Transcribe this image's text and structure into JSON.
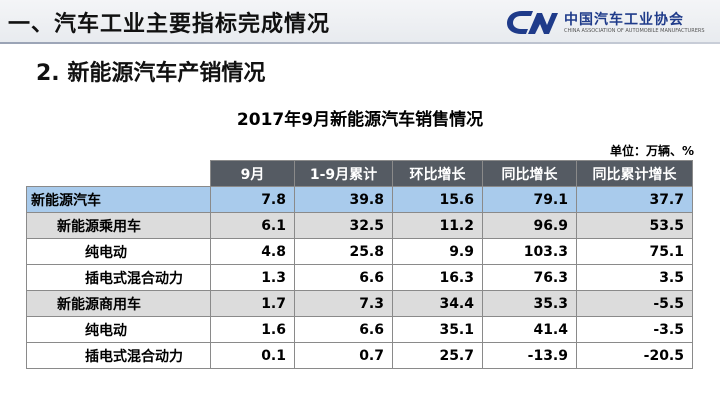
{
  "header": {
    "title": "一、汽车工业主要指标完成情况",
    "logo_cn": "中国汽车工业协会",
    "logo_en": "CHINA ASSOCIATION OF AUTOMOBILE MANUFACTURERS"
  },
  "section": {
    "title": "2. 新能源汽车产销情况"
  },
  "table": {
    "title": "2017年9月新能源汽车销售情况",
    "unit": "单位：万辆、%",
    "columns": [
      "9月",
      "1-9月累计",
      "环比增长",
      "同比增长",
      "同比累计增长"
    ],
    "rows": [
      {
        "name": "新能源汽车",
        "cells": [
          "7.8",
          "39.8",
          "15.6",
          "79.1",
          "37.7"
        ]
      },
      {
        "name": "新能源乘用车",
        "cells": [
          "6.1",
          "32.5",
          "11.2",
          "96.9",
          "53.5"
        ]
      },
      {
        "name": "纯电动",
        "cells": [
          "4.8",
          "25.8",
          "9.9",
          "103.3",
          "75.1"
        ]
      },
      {
        "name": "插电式混合动力",
        "cells": [
          "1.3",
          "6.6",
          "16.3",
          "76.3",
          "3.5"
        ]
      },
      {
        "name": "新能源商用车",
        "cells": [
          "1.7",
          "7.3",
          "34.4",
          "35.3",
          "-5.5"
        ]
      },
      {
        "name": "纯电动",
        "cells": [
          "1.6",
          "6.6",
          "35.1",
          "41.4",
          "-3.5"
        ]
      },
      {
        "name": "插电式混合动力",
        "cells": [
          "0.1",
          "0.7",
          "25.7",
          "-13.9",
          "-20.5"
        ]
      }
    ]
  },
  "colors": {
    "header_cell": "#555b63",
    "highlight_row": "#a9cbec",
    "subtotal_row": "#dcdcdc",
    "logo": "#1f3b8a"
  }
}
